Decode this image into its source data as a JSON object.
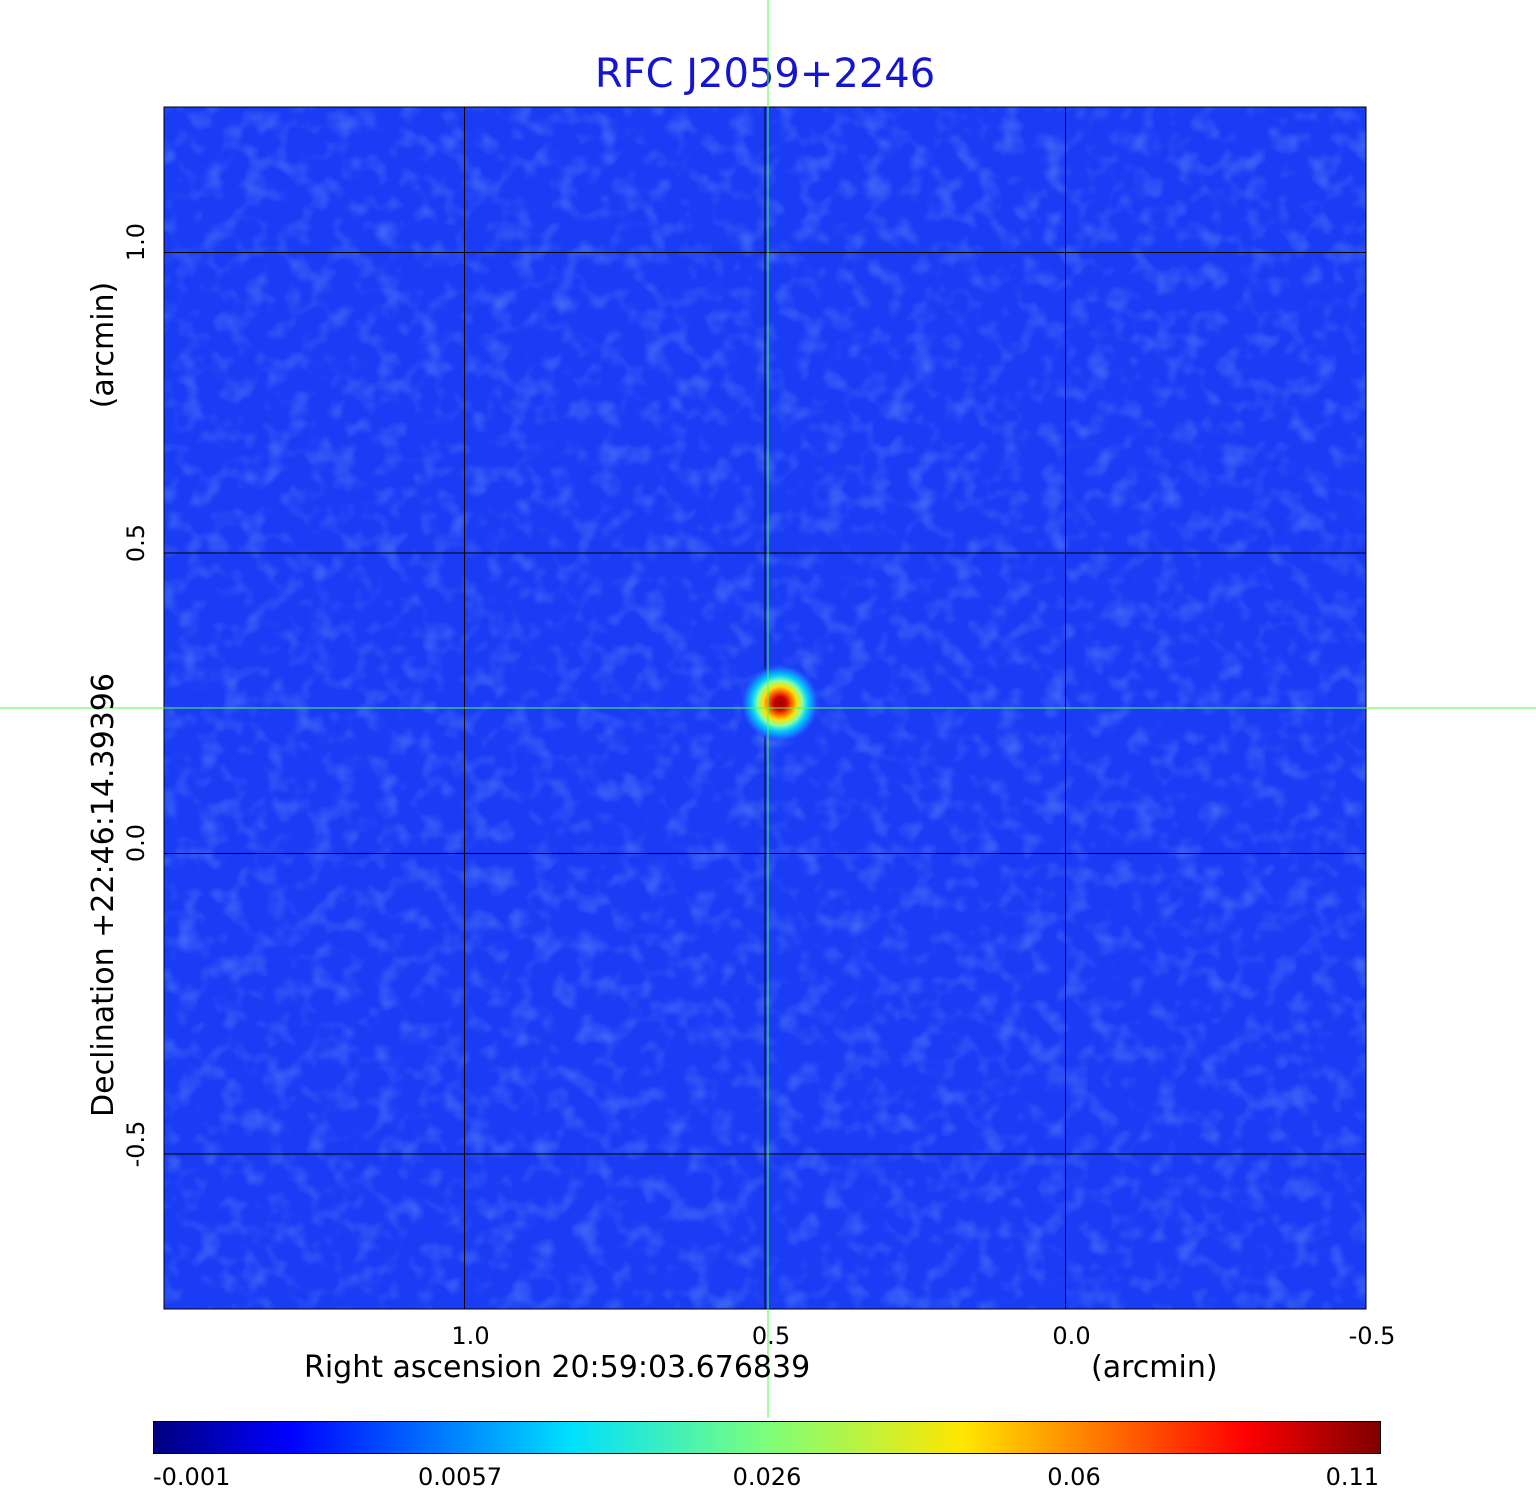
{
  "chart_data": {
    "type": "heatmap",
    "title": "RFC J2059+2246",
    "title_color": "#1414d2",
    "xlabel": "Right ascension  20:59:03.676839",
    "xunit": "(arcmin)",
    "ylabel": "Declination  +22:46:14.39396",
    "yunit": "(arcmin)",
    "x_ticks": [
      "1.0",
      "0.5",
      "0.0",
      "-0.5"
    ],
    "x_tick_values": [
      1.0,
      0.5,
      0.0,
      -0.5
    ],
    "y_ticks": [
      "1.0",
      "0.5",
      "0.0",
      "-0.5"
    ],
    "y_tick_values": [
      1.0,
      0.5,
      0.0,
      -0.5
    ],
    "xlim": [
      1.5,
      -0.5
    ],
    "ylim": [
      -0.758,
      1.242
    ],
    "grid": true,
    "grid_color": "#000000",
    "crosshair": {
      "x": 0.495,
      "y": 0.242,
      "color": "#4cff4c"
    },
    "source": {
      "x": 0.475,
      "y": 0.25,
      "peak": 0.11
    },
    "colormap": "jet",
    "colorbar": {
      "orientation": "horizontal",
      "ticks": [
        "-0.001",
        "0.0057",
        "0.026",
        "0.06",
        "0.11"
      ],
      "tick_values": [
        -0.001,
        0.0057,
        0.026,
        0.06,
        0.11
      ]
    }
  }
}
